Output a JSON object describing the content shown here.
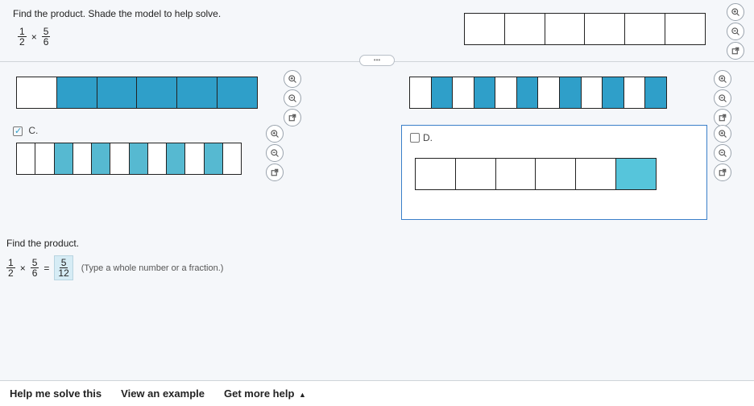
{
  "question": {
    "instruction": "Find the product. Shade the model to help solve.",
    "fraction1": {
      "num": "1",
      "den": "2"
    },
    "op": "×",
    "fraction2": {
      "num": "5",
      "den": "6"
    }
  },
  "top_model": {
    "cell_count": 6,
    "cell_color": "#ffffff",
    "border_color": "#222222"
  },
  "options": {
    "A": {
      "cell_count": 6,
      "fills": [
        false,
        true,
        true,
        true,
        true,
        true
      ],
      "fill_color": "#2f9fc9"
    },
    "B": {
      "cell_count": 12,
      "fills": [
        false,
        true,
        false,
        true,
        false,
        true,
        false,
        true,
        false,
        true,
        false,
        true
      ],
      "fill_color": "#2f9fc9"
    },
    "C": {
      "label": "C.",
      "checked": true,
      "cell_count": 12,
      "fills": [
        false,
        false,
        true,
        false,
        true,
        false,
        true,
        false,
        true,
        false,
        true,
        false
      ],
      "fill_color": "#56b9d1"
    },
    "D": {
      "label": "D.",
      "checked": false,
      "cell_count": 6,
      "fills": [
        false,
        false,
        false,
        false,
        false,
        true
      ],
      "fill_color": "#56c5db",
      "box_border": "#3a7fc9"
    }
  },
  "answer": {
    "prompt": "Find the product.",
    "fraction1": {
      "num": "1",
      "den": "2"
    },
    "op1": "×",
    "fraction2": {
      "num": "5",
      "den": "6"
    },
    "eq": "=",
    "result": {
      "num": "5",
      "den": "12"
    },
    "hint": "(Type a whole number or a fraction.)"
  },
  "footer": {
    "help": "Help me solve this",
    "example": "View an example",
    "more": "Get more help"
  },
  "icons": {
    "zoom_in": "zoom-in-icon",
    "zoom_out": "zoom-out-icon",
    "popout": "popout-icon"
  },
  "colors": {
    "background": "#f5f7fa",
    "border": "#222222",
    "active_border": "#3a7fc9",
    "fill_primary": "#2f9fc9"
  }
}
